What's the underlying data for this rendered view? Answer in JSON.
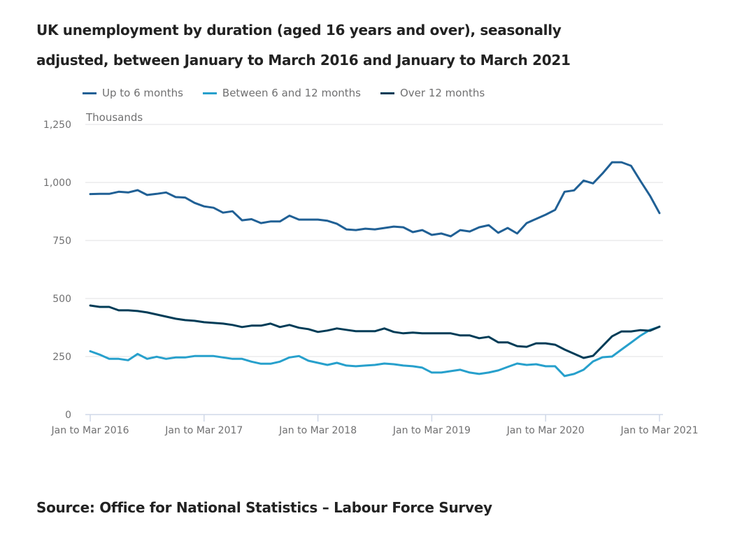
{
  "title": "UK unemployment by duration (aged 16 years and over), seasonally adjusted, between January to March 2016 and January to March 2021",
  "source": "Source: Office for National Statistics – Labour Force Survey",
  "chart_data": {
    "type": "line",
    "title": "UK unemployment by duration (aged 16 years and over), seasonally adjusted, between January to March 2016 and January to March 2021",
    "xlabel": "",
    "ylabel": "Thousands",
    "ylim": [
      0,
      1250
    ],
    "yticks": [
      0,
      250,
      500,
      750,
      1000,
      1250
    ],
    "ytick_labels": [
      "0",
      "250",
      "500",
      "750",
      "1,000",
      "1,250"
    ],
    "xtick_labels": [
      "Jan to Mar 2016",
      "Jan to Mar 2017",
      "Jan to Mar 2018",
      "Jan to Mar 2019",
      "Jan to Mar 2020",
      "Jan to Mar 2021"
    ],
    "xtick_indices": [
      0,
      12,
      24,
      36,
      48,
      60
    ],
    "grid": true,
    "legend_position": "top-left",
    "x_count": 61,
    "series": [
      {
        "name": "Up to 6 months",
        "color": "#206095",
        "values": [
          950,
          951,
          951,
          960,
          957,
          967,
          946,
          951,
          957,
          937,
          935,
          912,
          897,
          891,
          870,
          876,
          837,
          842,
          825,
          832,
          832,
          857,
          840,
          840,
          840,
          835,
          822,
          798,
          795,
          801,
          798,
          804,
          810,
          807,
          786,
          795,
          774,
          780,
          768,
          795,
          789,
          807,
          816,
          783,
          804,
          780,
          825,
          843,
          861,
          882,
          960,
          966,
          1008,
          996,
          1039,
          1087,
          1087,
          1072,
          1006,
          943,
          868
        ]
      },
      {
        "name": "Between 6 and 12 months",
        "color": "#27a0cc",
        "values": [
          273,
          258,
          240,
          240,
          234,
          261,
          240,
          249,
          240,
          246,
          246,
          252,
          252,
          252,
          246,
          240,
          240,
          228,
          219,
          219,
          228,
          246,
          252,
          232,
          223,
          214,
          223,
          211,
          208,
          211,
          214,
          220,
          217,
          211,
          208,
          202,
          181,
          181,
          187,
          193,
          181,
          175,
          181,
          190,
          205,
          220,
          214,
          217,
          208,
          208,
          166,
          175,
          193,
          229,
          247,
          250,
          280,
          310,
          340,
          365,
          378
        ]
      },
      {
        "name": "Over 12 months",
        "color": "#003c57",
        "values": [
          470,
          464,
          464,
          449,
          449,
          446,
          440,
          431,
          422,
          413,
          407,
          404,
          398,
          395,
          392,
          386,
          377,
          383,
          383,
          392,
          377,
          386,
          374,
          368,
          356,
          362,
          371,
          365,
          359,
          359,
          359,
          371,
          356,
          350,
          353,
          350,
          350,
          350,
          350,
          341,
          341,
          329,
          335,
          311,
          311,
          295,
          292,
          307,
          307,
          301,
          280,
          262,
          244,
          253,
          295,
          337,
          358,
          358,
          364,
          361,
          379
        ]
      }
    ]
  }
}
